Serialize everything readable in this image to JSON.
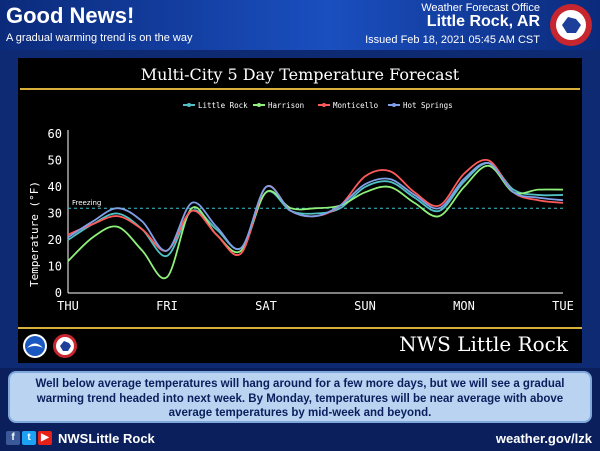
{
  "header": {
    "title": "Good News!",
    "subtitle": "A gradual warming trend is on the way",
    "office": "Weather Forecast Office",
    "city": "Little Rock, AR",
    "issued": "Issued Feb 18, 2021 05:45 AM CST"
  },
  "chart_data": {
    "type": "line",
    "title": "Multi-City 5 Day Temperature Forecast",
    "ylabel": "Temperature (°F)",
    "ylim": [
      0,
      60
    ],
    "yticks": [
      0,
      10,
      20,
      30,
      40,
      50,
      60
    ],
    "xlim": [
      0,
      120
    ],
    "x_tick_labels": [
      "THU",
      "FRI",
      "SAT",
      "SUN",
      "MON",
      "TUE"
    ],
    "x_tick_positions": [
      0,
      24,
      48,
      72,
      96,
      120
    ],
    "legend_position": "top-center",
    "grid": false,
    "reference_line": {
      "label": "Freezing",
      "value": 32,
      "color": "#3fc6d6"
    },
    "x": [
      0,
      6,
      12,
      18,
      24,
      30,
      36,
      42,
      48,
      54,
      60,
      66,
      72,
      78,
      84,
      90,
      96,
      102,
      108,
      114,
      120
    ],
    "series": [
      {
        "name": "Little Rock",
        "color": "#4fc1c4",
        "values": [
          20,
          26,
          30,
          24,
          14,
          31,
          24,
          17,
          38,
          31,
          30,
          32,
          40,
          42,
          36,
          31,
          42,
          49,
          39,
          37,
          37
        ]
      },
      {
        "name": "Harrison",
        "color": "#8ff07a",
        "values": [
          12,
          21,
          25,
          16,
          6,
          32,
          22,
          16,
          38,
          32,
          32,
          33,
          38,
          40,
          34,
          29,
          40,
          48,
          38,
          39,
          39
        ]
      },
      {
        "name": "Monticello",
        "color": "#ff5a5a",
        "values": [
          22,
          26,
          29,
          24,
          16,
          31,
          22,
          15,
          40,
          31,
          29,
          33,
          44,
          46,
          38,
          33,
          45,
          50,
          38,
          35,
          34
        ]
      },
      {
        "name": "Hot Springs",
        "color": "#7f9fe6",
        "values": [
          21,
          27,
          32,
          27,
          16,
          34,
          25,
          17,
          40,
          31,
          29,
          33,
          41,
          43,
          37,
          32,
          43,
          49,
          38,
          36,
          35
        ]
      }
    ]
  },
  "banner": {
    "text": "NWS Little Rock"
  },
  "message": "Well below average temperatures will hang around for a few more days, but we will see a gradual warming trend headed into next week. By Monday, temperatures will be near average with above average temperatures by mid-week and beyond.",
  "footer": {
    "handle": "NWSLittle Rock",
    "website": "weather.gov/lzk"
  },
  "icons": {
    "facebook": "facebook-icon",
    "twitter": "twitter-icon",
    "youtube": "youtube-icon"
  },
  "colors": {
    "header_blue": "#1a4fc0",
    "accent_gold": "#d9b13a"
  }
}
